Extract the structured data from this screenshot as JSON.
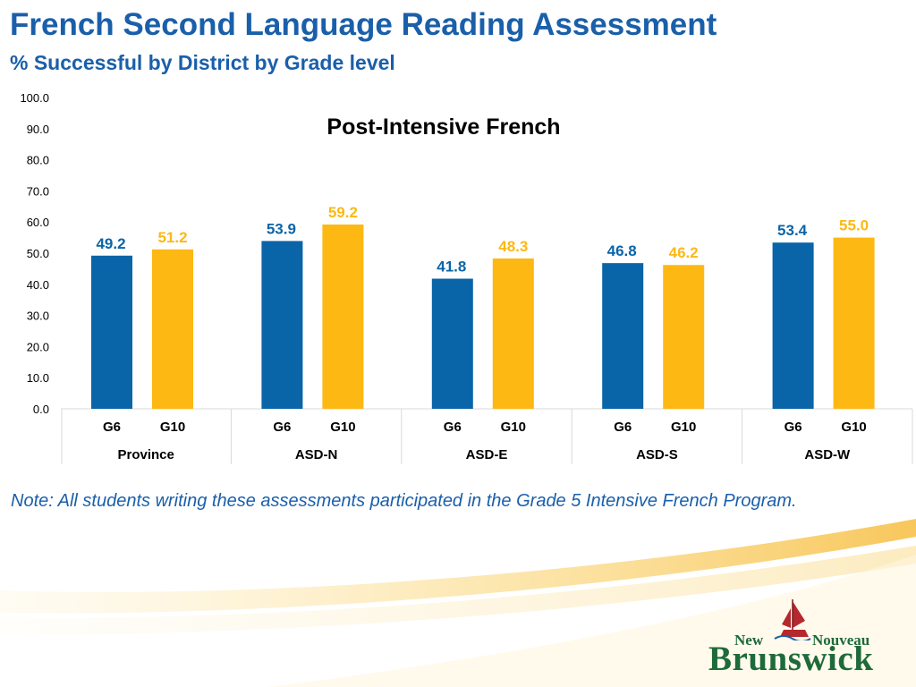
{
  "slide": {
    "title": "French Second Language Reading Assessment",
    "subtitle": "% Successful by District by Grade level",
    "note": "Note: All students writing these assessments participated in the Grade 5 Intensive French Program."
  },
  "logo": {
    "line1_left": "New",
    "line1_right": "Nouveau",
    "line2": "Brunswick"
  },
  "colors": {
    "g6": "#0a64a8",
    "g10": "#fdb813",
    "title": "#1a5faa",
    "logo_green": "#1e6a3a",
    "logo_red": "#b5282e"
  },
  "chart_data": {
    "type": "bar",
    "title": "Post-Intensive French",
    "groups": [
      "Province",
      "ASD-N",
      "ASD-E",
      "ASD-S",
      "ASD-W"
    ],
    "subcategories": [
      "G6",
      "G10"
    ],
    "series": [
      {
        "name": "G6",
        "values": [
          49.2,
          53.9,
          41.8,
          46.8,
          53.4
        ]
      },
      {
        "name": "G10",
        "values": [
          51.2,
          59.2,
          48.3,
          46.2,
          55.0
        ]
      }
    ],
    "data_labels": {
      "G6": [
        "49.2",
        "53.9",
        "41.8",
        "46.8",
        "53.4"
      ],
      "G10": [
        "51.2",
        "59.2",
        "48.3",
        "46.2",
        "55.0"
      ]
    },
    "y_ticks": [
      "0.0",
      "10.0",
      "20.0",
      "30.0",
      "40.0",
      "50.0",
      "60.0",
      "70.0",
      "80.0",
      "90.0",
      "100.0"
    ],
    "ylim": [
      0,
      100
    ],
    "grid": false,
    "legend": "none"
  }
}
